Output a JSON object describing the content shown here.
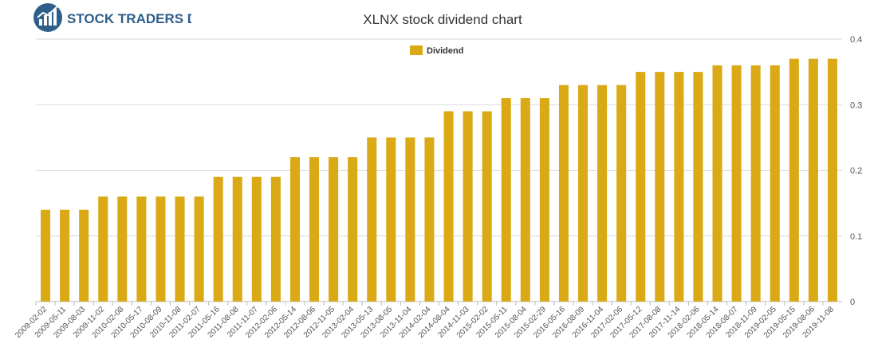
{
  "brand": {
    "name": "STOCK TRADERS DAILY"
  },
  "colors": {
    "bar": "#daa916",
    "grid": "#d9d9d9",
    "axis": "#bbbbbb",
    "text": "#333333",
    "brand": "#2e5f8a"
  },
  "chart_data": {
    "type": "bar",
    "title": "XLNX stock dividend chart",
    "xlabel": "",
    "ylabel": "",
    "ylim": [
      0,
      0.4
    ],
    "yticks": [
      0,
      0.1,
      0.2,
      0.3,
      0.4
    ],
    "yaxis_side": "right",
    "grid": true,
    "legend": "top-center",
    "categories": [
      "2009-02-02",
      "2009-05-11",
      "2009-08-03",
      "2009-11-02",
      "2010-02-08",
      "2010-05-17",
      "2010-08-09",
      "2010-11-08",
      "2011-02-07",
      "2011-05-16",
      "2011-08-08",
      "2011-11-07",
      "2012-02-06",
      "2012-05-14",
      "2012-08-06",
      "2012-11-05",
      "2013-02-04",
      "2013-05-13",
      "2013-08-05",
      "2013-11-04",
      "2014-02-04",
      "2014-08-04",
      "2014-11-03",
      "2015-02-02",
      "2015-05-11",
      "2015-08-04",
      "2015-02-29",
      "2016-05-16",
      "2016-08-09",
      "2016-11-04",
      "2017-02-06",
      "2017-05-12",
      "2017-08-08",
      "2017-11-14",
      "2018-02-06",
      "2018-05-14",
      "2018-08-07",
      "2018-11-09",
      "2019-02-05",
      "2019-05-15",
      "2019-08-06",
      "2019-11-08"
    ],
    "series": [
      {
        "name": "Dividend",
        "color": "#daa916",
        "values": [
          0.14,
          0.14,
          0.14,
          0.16,
          0.16,
          0.16,
          0.16,
          0.16,
          0.16,
          0.19,
          0.19,
          0.19,
          0.19,
          0.22,
          0.22,
          0.22,
          0.22,
          0.25,
          0.25,
          0.25,
          0.25,
          0.29,
          0.29,
          0.29,
          0.31,
          0.31,
          0.31,
          0.33,
          0.33,
          0.33,
          0.33,
          0.35,
          0.35,
          0.35,
          0.35,
          0.36,
          0.36,
          0.36,
          0.36,
          0.37,
          0.37,
          0.37
        ]
      }
    ]
  }
}
